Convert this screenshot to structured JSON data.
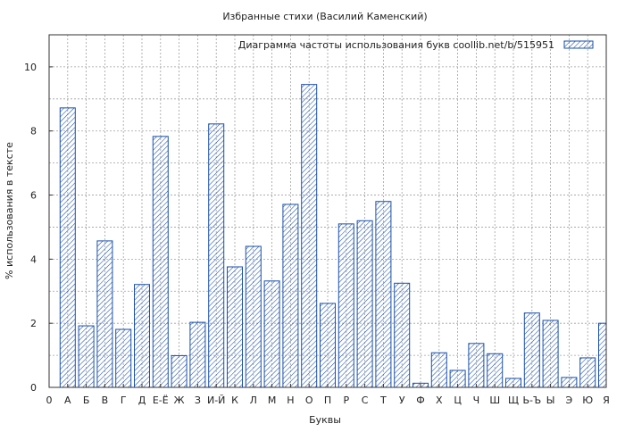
{
  "colors": {
    "bar_stroke": "#1a4fa8",
    "hatch": "#1a4fa8",
    "grid": "#a0a0a0",
    "axis": "#333333"
  },
  "chart_data": {
    "type": "bar",
    "title": "Избранные стихи (Василий Каменский)",
    "xlabel": "Буквы",
    "ylabel": "% использования в тексте",
    "legend": {
      "label": "Диаграмма частоты использования букв  coollib.net/b/515951",
      "position": "top-right"
    },
    "ylim": [
      0,
      11
    ],
    "y_ticks": [
      0,
      2,
      4,
      6,
      8,
      10
    ],
    "grid": true,
    "categories": [
      "0",
      "А",
      "Б",
      "В",
      "Г",
      "Д",
      "Е-Ё",
      "Ж",
      "З",
      "И-Й",
      "К",
      "Л",
      "М",
      "Н",
      "О",
      "П",
      "Р",
      "С",
      "Т",
      "У",
      "Ф",
      "Х",
      "Ц",
      "Ч",
      "Ш",
      "Щ",
      "Ь-Ъ",
      "Ы",
      "Э",
      "Ю",
      "Я"
    ],
    "values": [
      0,
      8.72,
      1.92,
      4.57,
      1.81,
      3.21,
      7.83,
      0.99,
      2.03,
      8.22,
      3.76,
      4.4,
      3.32,
      5.71,
      9.45,
      2.62,
      5.1,
      5.2,
      5.8,
      3.25,
      0.13,
      1.08,
      0.53,
      1.37,
      1.05,
      0.28,
      2.32,
      2.09,
      0.31,
      0.92,
      2.0
    ]
  }
}
